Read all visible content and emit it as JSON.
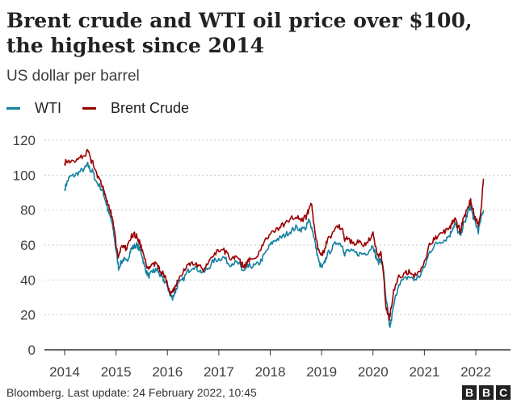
{
  "title": "Brent crude and WTI oil price over $100, the highest since 2014",
  "subtitle": "US dollar per barrel",
  "colors": {
    "wti": "#1380a1",
    "brent": "#990000",
    "grid": "#cbcbcb",
    "axis": "#333333"
  },
  "legend": [
    {
      "name": "WTI",
      "color": "#1380a1"
    },
    {
      "name": "Brent Crude",
      "color": "#990000"
    }
  ],
  "source": "Bloomberg. Last update: 24 February 2022, 10:45",
  "logo": [
    "B",
    "B",
    "C"
  ],
  "chart_data": {
    "type": "line",
    "title": "Brent crude and WTI oil price over $100, the highest since 2014",
    "ylabel": "US dollar per barrel",
    "xlabel": "",
    "xlim": [
      2014.0,
      2022.5
    ],
    "ylim": [
      0,
      120
    ],
    "yticks": [
      0,
      20,
      40,
      60,
      80,
      100,
      120
    ],
    "xticks": [
      "2014",
      "2015",
      "2016",
      "2017",
      "2018",
      "2019",
      "2020",
      "2021",
      "2022"
    ],
    "grid": true,
    "legend_position": "top-left",
    "series": [
      {
        "name": "WTI",
        "x": [
          2014.0,
          2014.05,
          2014.1,
          2014.2,
          2014.3,
          2014.4,
          2014.45,
          2014.5,
          2014.55,
          2014.6,
          2014.7,
          2014.75,
          2014.8,
          2014.85,
          2014.9,
          2014.95,
          2015.0,
          2015.05,
          2015.1,
          2015.15,
          2015.2,
          2015.25,
          2015.3,
          2015.35,
          2015.4,
          2015.45,
          2015.5,
          2015.55,
          2015.6,
          2015.65,
          2015.7,
          2015.75,
          2015.8,
          2015.85,
          2015.9,
          2015.95,
          2016.0,
          2016.05,
          2016.1,
          2016.15,
          2016.2,
          2016.3,
          2016.4,
          2016.5,
          2016.6,
          2016.7,
          2016.8,
          2016.9,
          2017.0,
          2017.1,
          2017.2,
          2017.3,
          2017.4,
          2017.45,
          2017.5,
          2017.55,
          2017.6,
          2017.7,
          2017.8,
          2017.9,
          2018.0,
          2018.1,
          2018.2,
          2018.3,
          2018.4,
          2018.5,
          2018.6,
          2018.7,
          2018.75,
          2018.8,
          2018.85,
          2018.9,
          2018.95,
          2019.0,
          2019.05,
          2019.1,
          2019.2,
          2019.3,
          2019.4,
          2019.45,
          2019.5,
          2019.6,
          2019.7,
          2019.8,
          2019.9,
          2020.0,
          2020.05,
          2020.1,
          2020.15,
          2020.2,
          2020.25,
          2020.3,
          2020.32,
          2020.35,
          2020.4,
          2020.5,
          2020.6,
          2020.7,
          2020.8,
          2020.9,
          2021.0,
          2021.1,
          2021.2,
          2021.3,
          2021.4,
          2021.5,
          2021.55,
          2021.6,
          2021.65,
          2021.7,
          2021.75,
          2021.8,
          2021.85,
          2021.9,
          2021.95,
          2022.0,
          2022.05,
          2022.1,
          2022.15
        ],
        "values": [
          92,
          96,
          99,
          100,
          102,
          104,
          106,
          103,
          102,
          97,
          93,
          90,
          85,
          79,
          75,
          68,
          57,
          47,
          50,
          52,
          50,
          54,
          58,
          59,
          60,
          58,
          55,
          48,
          44,
          42,
          45,
          45,
          46,
          43,
          41,
          39,
          37,
          31,
          30,
          33,
          37,
          40,
          45,
          48,
          46,
          44,
          47,
          51,
          52,
          53,
          49,
          50,
          49,
          46,
          45,
          47,
          48,
          48,
          50,
          55,
          60,
          63,
          64,
          66,
          68,
          70,
          69,
          70,
          74,
          71,
          65,
          57,
          50,
          47,
          49,
          54,
          58,
          62,
          60,
          55,
          57,
          56,
          55,
          55,
          56,
          60,
          54,
          50,
          52,
          47,
          30,
          20,
          12,
          16,
          25,
          38,
          40,
          42,
          40,
          42,
          47,
          56,
          60,
          62,
          63,
          66,
          70,
          72,
          68,
          65,
          71,
          74,
          79,
          82,
          76,
          72,
          68,
          75,
          80
        ]
      },
      {
        "name": "Brent Crude",
        "x": [
          2014.0,
          2014.05,
          2014.1,
          2014.2,
          2014.3,
          2014.4,
          2014.45,
          2014.5,
          2014.55,
          2014.6,
          2014.7,
          2014.75,
          2014.8,
          2014.85,
          2014.9,
          2014.95,
          2015.0,
          2015.05,
          2015.1,
          2015.15,
          2015.2,
          2015.25,
          2015.3,
          2015.35,
          2015.4,
          2015.45,
          2015.5,
          2015.55,
          2015.6,
          2015.65,
          2015.7,
          2015.75,
          2015.8,
          2015.85,
          2015.9,
          2015.95,
          2016.0,
          2016.05,
          2016.1,
          2016.15,
          2016.2,
          2016.3,
          2016.4,
          2016.5,
          2016.6,
          2016.7,
          2016.8,
          2016.9,
          2017.0,
          2017.1,
          2017.2,
          2017.3,
          2017.4,
          2017.45,
          2017.5,
          2017.55,
          2017.6,
          2017.7,
          2017.8,
          2017.9,
          2018.0,
          2018.1,
          2018.2,
          2018.3,
          2018.4,
          2018.5,
          2018.6,
          2018.7,
          2018.75,
          2018.8,
          2018.85,
          2018.9,
          2018.95,
          2019.0,
          2019.05,
          2019.1,
          2019.2,
          2019.3,
          2019.4,
          2019.45,
          2019.5,
          2019.6,
          2019.7,
          2019.8,
          2019.9,
          2020.0,
          2020.05,
          2020.1,
          2020.15,
          2020.2,
          2020.25,
          2020.3,
          2020.32,
          2020.35,
          2020.4,
          2020.5,
          2020.6,
          2020.7,
          2020.8,
          2020.9,
          2021.0,
          2021.1,
          2021.2,
          2021.3,
          2021.4,
          2021.5,
          2021.55,
          2021.6,
          2021.65,
          2021.7,
          2021.75,
          2021.8,
          2021.85,
          2021.9,
          2021.95,
          2022.0,
          2022.05,
          2022.1,
          2022.15
        ],
        "values": [
          107,
          108,
          107,
          109,
          110,
          112,
          114,
          109,
          107,
          102,
          97,
          93,
          88,
          83,
          79,
          72,
          60,
          52,
          58,
          60,
          57,
          61,
          65,
          66,
          65,
          62,
          58,
          52,
          48,
          47,
          49,
          49,
          49,
          46,
          44,
          42,
          38,
          32,
          33,
          36,
          40,
          44,
          48,
          50,
          48,
          46,
          49,
          55,
          56,
          57,
          53,
          53,
          51,
          49,
          48,
          50,
          52,
          53,
          56,
          62,
          67,
          69,
          70,
          73,
          75,
          77,
          74,
          76,
          80,
          84,
          72,
          63,
          56,
          54,
          57,
          62,
          66,
          71,
          70,
          63,
          64,
          61,
          62,
          60,
          62,
          66,
          58,
          54,
          56,
          45,
          25,
          20,
          18,
          24,
          33,
          42,
          43,
          45,
          42,
          44,
          50,
          60,
          64,
          66,
          68,
          70,
          73,
          75,
          71,
          68,
          74,
          78,
          83,
          85,
          80,
          75,
          72,
          80,
          98
        ]
      }
    ]
  }
}
